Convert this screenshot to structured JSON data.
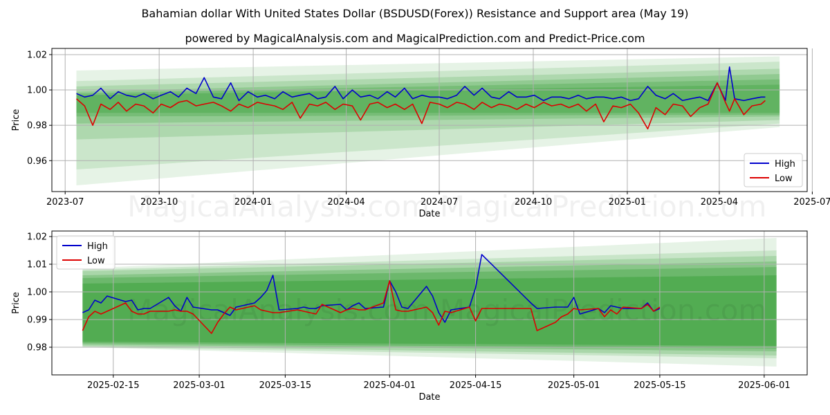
{
  "title": "Bahamian dollar With United States Dollar (BSDUSD(Forex)) Resistance and Support area (May 19)",
  "subtitle": "powered by MagicalAnalysis.com and MagicalPrediction.com and Predict-Price.com",
  "watermarks": [
    "MagicalAnalysis.com",
    "MagicalPrediction.com"
  ],
  "colors": {
    "high": "#0000cc",
    "low": "#dd0000",
    "band": "#2e9a2e",
    "grid": "#b0b0b0"
  },
  "chart_data": [
    {
      "type": "line",
      "xlabel": "Date",
      "ylabel": "Price",
      "xlim": [
        "2023-06-18",
        "2025-06-26"
      ],
      "ylim": [
        0.9425,
        1.0235
      ],
      "grid": true,
      "legend": "bottom-right",
      "x_ticks": [
        "2023-07",
        "2023-10",
        "2024-01",
        "2024-04",
        "2024-07",
        "2024-10",
        "2025-01",
        "2025-04",
        "2025-07"
      ],
      "y_ticks": [
        "0.96",
        "0.98",
        "1.00",
        "1.02"
      ],
      "bands": {
        "x_start": "2023-07-12",
        "x_end": "2025-05-30",
        "upper_start": [
          1.011,
          1.005,
          1.002,
          0.999,
          0.998,
          0.997
        ],
        "upper_end": [
          1.019,
          1.016,
          1.012,
          1.009,
          1.006,
          1.003
        ],
        "lower_start": [
          0.946,
          0.955,
          0.972,
          0.981,
          0.985,
          0.987
        ],
        "lower_end": [
          0.979,
          0.981,
          0.983,
          0.985,
          0.986,
          0.987
        ],
        "opacity": [
          0.12,
          0.14,
          0.18,
          0.22,
          0.26,
          0.3
        ]
      },
      "series": [
        {
          "name": "High",
          "color": "#0000cc",
          "x": [
            "2023-07-12",
            "2023-07-20",
            "2023-07-28",
            "2023-08-05",
            "2023-08-14",
            "2023-08-22",
            "2023-08-30",
            "2023-09-08",
            "2023-09-16",
            "2023-09-25",
            "2023-10-03",
            "2023-10-12",
            "2023-10-20",
            "2023-10-28",
            "2023-11-06",
            "2023-11-14",
            "2023-11-23",
            "2023-12-01",
            "2023-12-10",
            "2023-12-18",
            "2023-12-27",
            "2024-01-05",
            "2024-01-13",
            "2024-01-22",
            "2024-01-30",
            "2024-02-08",
            "2024-02-16",
            "2024-02-25",
            "2024-03-04",
            "2024-03-12",
            "2024-03-21",
            "2024-03-29",
            "2024-04-07",
            "2024-04-15",
            "2024-04-24",
            "2024-05-02",
            "2024-05-11",
            "2024-05-19",
            "2024-05-28",
            "2024-06-05",
            "2024-06-14",
            "2024-06-22",
            "2024-07-01",
            "2024-07-09",
            "2024-07-18",
            "2024-07-26",
            "2024-08-04",
            "2024-08-12",
            "2024-08-21",
            "2024-08-29",
            "2024-09-07",
            "2024-09-15",
            "2024-09-24",
            "2024-10-02",
            "2024-10-11",
            "2024-10-19",
            "2024-10-28",
            "2024-11-05",
            "2024-11-14",
            "2024-11-22",
            "2024-12-01",
            "2024-12-09",
            "2024-12-18",
            "2024-12-26",
            "2025-01-04",
            "2025-01-12",
            "2025-01-21",
            "2025-01-29",
            "2025-02-07",
            "2025-02-15",
            "2025-02-24",
            "2025-03-04",
            "2025-03-13",
            "2025-03-21",
            "2025-03-30",
            "2025-04-07",
            "2025-04-11",
            "2025-04-16",
            "2025-04-25",
            "2025-05-03",
            "2025-05-12",
            "2025-05-16"
          ],
          "values": [
            0.998,
            0.996,
            0.997,
            1.001,
            0.995,
            0.999,
            0.997,
            0.996,
            0.998,
            0.995,
            0.997,
            0.999,
            0.996,
            1.001,
            0.998,
            1.007,
            0.996,
            0.995,
            1.004,
            0.994,
            0.999,
            0.996,
            0.997,
            0.995,
            0.999,
            0.996,
            0.997,
            0.998,
            0.995,
            0.996,
            1.002,
            0.995,
            1.0,
            0.996,
            0.997,
            0.995,
            0.999,
            0.996,
            1.001,
            0.995,
            0.997,
            0.996,
            0.996,
            0.995,
            0.997,
            1.002,
            0.997,
            1.001,
            0.996,
            0.995,
            0.999,
            0.996,
            0.996,
            0.997,
            0.994,
            0.996,
            0.996,
            0.995,
            0.997,
            0.995,
            0.996,
            0.996,
            0.995,
            0.996,
            0.994,
            0.995,
            1.002,
            0.997,
            0.995,
            0.998,
            0.994,
            0.995,
            0.996,
            0.994,
            1.004,
            0.994,
            1.013,
            0.995,
            0.994,
            0.995,
            0.996,
            0.996
          ]
        },
        {
          "name": "Low",
          "color": "#dd0000",
          "x": [
            "2023-07-12",
            "2023-07-20",
            "2023-07-28",
            "2023-08-05",
            "2023-08-14",
            "2023-08-22",
            "2023-08-30",
            "2023-09-08",
            "2023-09-16",
            "2023-09-25",
            "2023-10-03",
            "2023-10-12",
            "2023-10-20",
            "2023-10-28",
            "2023-11-06",
            "2023-11-14",
            "2023-11-23",
            "2023-12-01",
            "2023-12-10",
            "2023-12-18",
            "2023-12-27",
            "2024-01-05",
            "2024-01-13",
            "2024-01-22",
            "2024-01-30",
            "2024-02-08",
            "2024-02-16",
            "2024-02-25",
            "2024-03-04",
            "2024-03-12",
            "2024-03-21",
            "2024-03-29",
            "2024-04-07",
            "2024-04-15",
            "2024-04-24",
            "2024-05-02",
            "2024-05-11",
            "2024-05-19",
            "2024-05-28",
            "2024-06-05",
            "2024-06-14",
            "2024-06-22",
            "2024-07-01",
            "2024-07-09",
            "2024-07-18",
            "2024-07-26",
            "2024-08-04",
            "2024-08-12",
            "2024-08-21",
            "2024-08-29",
            "2024-09-07",
            "2024-09-15",
            "2024-09-24",
            "2024-10-02",
            "2024-10-11",
            "2024-10-19",
            "2024-10-28",
            "2024-11-05",
            "2024-11-14",
            "2024-11-22",
            "2024-12-01",
            "2024-12-09",
            "2024-12-18",
            "2024-12-26",
            "2025-01-04",
            "2025-01-12",
            "2025-01-21",
            "2025-01-29",
            "2025-02-07",
            "2025-02-15",
            "2025-02-24",
            "2025-03-04",
            "2025-03-13",
            "2025-03-21",
            "2025-03-30",
            "2025-04-07",
            "2025-04-11",
            "2025-04-16",
            "2025-04-25",
            "2025-05-03",
            "2025-05-12",
            "2025-05-16"
          ],
          "values": [
            0.995,
            0.991,
            0.98,
            0.992,
            0.989,
            0.993,
            0.988,
            0.992,
            0.991,
            0.987,
            0.992,
            0.99,
            0.993,
            0.994,
            0.991,
            0.992,
            0.993,
            0.991,
            0.988,
            0.992,
            0.99,
            0.993,
            0.992,
            0.991,
            0.989,
            0.993,
            0.984,
            0.992,
            0.991,
            0.993,
            0.989,
            0.992,
            0.991,
            0.983,
            0.992,
            0.993,
            0.99,
            0.992,
            0.989,
            0.992,
            0.981,
            0.993,
            0.992,
            0.99,
            0.993,
            0.992,
            0.989,
            0.993,
            0.99,
            0.992,
            0.991,
            0.989,
            0.992,
            0.99,
            0.993,
            0.991,
            0.992,
            0.99,
            0.992,
            0.988,
            0.992,
            0.982,
            0.991,
            0.99,
            0.992,
            0.987,
            0.978,
            0.99,
            0.986,
            0.992,
            0.991,
            0.985,
            0.99,
            0.992,
            1.004,
            0.993,
            0.988,
            0.995,
            0.986,
            0.991,
            0.992,
            0.994
          ]
        }
      ]
    },
    {
      "type": "line",
      "xlabel": "Date",
      "ylabel": "Price",
      "xlim": [
        "2025-02-05",
        "2025-06-08"
      ],
      "ylim": [
        0.97,
        1.022
      ],
      "grid": true,
      "legend": "top-left",
      "x_ticks": [
        "2025-02-15",
        "2025-03-01",
        "2025-03-15",
        "2025-04-01",
        "2025-04-15",
        "2025-05-01",
        "2025-05-15",
        "2025-06-01"
      ],
      "y_ticks": [
        "0.98",
        "0.99",
        "1.00",
        "1.01",
        "1.02"
      ],
      "bands": {
        "x_start": "2025-02-10",
        "x_end": "2025-06-03",
        "upper_start": [
          1.0085,
          1.008,
          1.0075,
          1.006,
          1.005,
          1.003
        ],
        "upper_end": [
          1.0195,
          1.015,
          1.013,
          1.011,
          1.009,
          1.006
        ],
        "lower_start": [
          0.98,
          0.98,
          0.9805,
          0.981,
          0.9815,
          0.982
        ],
        "lower_end": [
          0.973,
          0.976,
          0.977,
          0.9785,
          0.9795,
          0.9805
        ],
        "opacity": [
          0.12,
          0.16,
          0.2,
          0.26,
          0.32,
          0.4
        ]
      },
      "series": [
        {
          "name": "High",
          "color": "#0000cc",
          "x": [
            "2025-02-10",
            "2025-02-11",
            "2025-02-12",
            "2025-02-13",
            "2025-02-14",
            "2025-02-17",
            "2025-02-18",
            "2025-02-19",
            "2025-02-20",
            "2025-02-21",
            "2025-02-24",
            "2025-02-25",
            "2025-02-26",
            "2025-02-27",
            "2025-02-28",
            "2025-03-03",
            "2025-03-04",
            "2025-03-05",
            "2025-03-06",
            "2025-03-07",
            "2025-03-10",
            "2025-03-11",
            "2025-03-12",
            "2025-03-13",
            "2025-03-14",
            "2025-03-17",
            "2025-03-18",
            "2025-03-19",
            "2025-03-20",
            "2025-03-21",
            "2025-03-24",
            "2025-03-25",
            "2025-03-26",
            "2025-03-27",
            "2025-03-28",
            "2025-03-31",
            "2025-04-01",
            "2025-04-02",
            "2025-04-03",
            "2025-04-04",
            "2025-04-07",
            "2025-04-08",
            "2025-04-09",
            "2025-04-10",
            "2025-04-11",
            "2025-04-14",
            "2025-04-15",
            "2025-04-16",
            "2025-04-24",
            "2025-04-25",
            "2025-04-28",
            "2025-04-29",
            "2025-04-30",
            "2025-05-01",
            "2025-05-02",
            "2025-05-05",
            "2025-05-06",
            "2025-05-07",
            "2025-05-08",
            "2025-05-09",
            "2025-05-12",
            "2025-05-13",
            "2025-05-14",
            "2025-05-15"
          ],
          "values": [
            0.9925,
            0.9935,
            0.997,
            0.996,
            0.9985,
            0.9965,
            0.997,
            0.9935,
            0.994,
            0.994,
            0.998,
            0.995,
            0.993,
            0.998,
            0.9945,
            0.9935,
            0.9935,
            0.9925,
            0.9915,
            0.9945,
            0.996,
            0.998,
            1.0005,
            1.006,
            0.9935,
            0.994,
            0.9945,
            0.994,
            0.994,
            0.995,
            0.9955,
            0.9935,
            0.995,
            0.996,
            0.994,
            0.9945,
            1.004,
            1.0,
            0.9945,
            0.994,
            1.002,
            0.9985,
            0.9925,
            0.989,
            0.9935,
            0.9945,
            1.0015,
            1.0135,
            0.996,
            0.994,
            0.9945,
            0.9945,
            0.9945,
            0.998,
            0.992,
            0.994,
            0.9925,
            0.995,
            0.9945,
            0.994,
            0.994,
            0.996,
            0.993,
            0.994
          ]
        },
        {
          "name": "Low",
          "color": "#dd0000",
          "x": [
            "2025-02-10",
            "2025-02-11",
            "2025-02-12",
            "2025-02-13",
            "2025-02-14",
            "2025-02-17",
            "2025-02-18",
            "2025-02-19",
            "2025-02-20",
            "2025-02-21",
            "2025-02-24",
            "2025-02-25",
            "2025-02-26",
            "2025-02-27",
            "2025-02-28",
            "2025-03-03",
            "2025-03-04",
            "2025-03-05",
            "2025-03-06",
            "2025-03-07",
            "2025-03-10",
            "2025-03-11",
            "2025-03-12",
            "2025-03-13",
            "2025-03-14",
            "2025-03-17",
            "2025-03-18",
            "2025-03-19",
            "2025-03-20",
            "2025-03-21",
            "2025-03-24",
            "2025-03-25",
            "2025-03-26",
            "2025-03-27",
            "2025-03-28",
            "2025-03-31",
            "2025-04-01",
            "2025-04-02",
            "2025-04-03",
            "2025-04-04",
            "2025-04-07",
            "2025-04-08",
            "2025-04-09",
            "2025-04-10",
            "2025-04-11",
            "2025-04-14",
            "2025-04-15",
            "2025-04-16",
            "2025-04-24",
            "2025-04-25",
            "2025-04-28",
            "2025-04-29",
            "2025-04-30",
            "2025-05-01",
            "2025-05-02",
            "2025-05-05",
            "2025-05-06",
            "2025-05-07",
            "2025-05-08",
            "2025-05-09",
            "2025-05-12",
            "2025-05-13",
            "2025-05-14",
            "2025-05-15"
          ],
          "values": [
            0.986,
            0.991,
            0.993,
            0.992,
            0.993,
            0.996,
            0.993,
            0.992,
            0.992,
            0.993,
            0.993,
            0.9935,
            0.993,
            0.993,
            0.992,
            0.985,
            0.989,
            0.992,
            0.9945,
            0.9935,
            0.995,
            0.9935,
            0.993,
            0.9925,
            0.9925,
            0.9935,
            0.993,
            0.9925,
            0.992,
            0.9955,
            0.9925,
            0.9935,
            0.994,
            0.9935,
            0.9935,
            0.996,
            1.004,
            0.9935,
            0.993,
            0.993,
            0.9945,
            0.9925,
            0.988,
            0.993,
            0.9925,
            0.9945,
            0.9895,
            0.994,
            0.994,
            0.986,
            0.989,
            0.991,
            0.992,
            0.994,
            0.9935,
            0.994,
            0.991,
            0.9935,
            0.992,
            0.9945,
            0.994,
            0.9955,
            0.993,
            0.9945
          ]
        }
      ]
    }
  ]
}
